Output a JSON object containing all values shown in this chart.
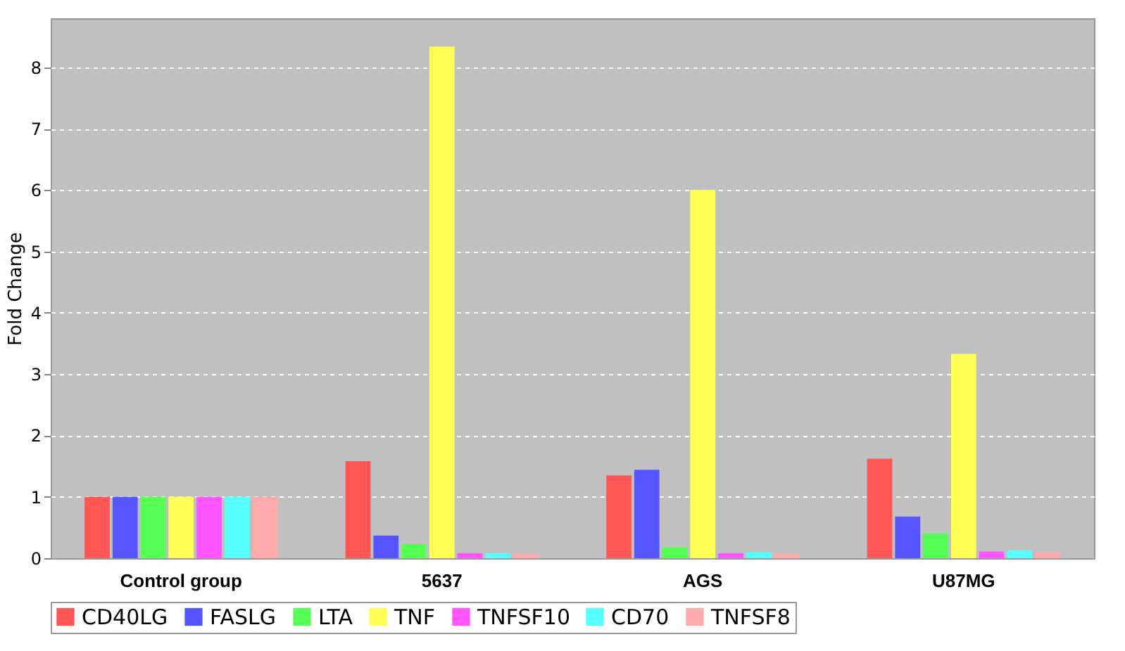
{
  "chart_data": {
    "type": "bar",
    "ylabel": "Fold Change",
    "categories": [
      "Control group",
      "5637",
      "AGS",
      "U87MG"
    ],
    "series": [
      {
        "name": "CD40LG",
        "color": "#ff5555",
        "values": [
          1,
          1.58,
          1.35,
          1.62
        ]
      },
      {
        "name": "FASLG",
        "color": "#5555ff",
        "values": [
          1,
          0.37,
          1.44,
          0.68
        ]
      },
      {
        "name": "LTA",
        "color": "#55ff55",
        "values": [
          1,
          0.23,
          0.18,
          0.4
        ]
      },
      {
        "name": "TNF",
        "color": "#ffff55",
        "values": [
          1,
          8.34,
          6.0,
          3.33
        ]
      },
      {
        "name": "TNFSF10",
        "color": "#ff55ff",
        "values": [
          1,
          0.08,
          0.08,
          0.11
        ]
      },
      {
        "name": "CD70",
        "color": "#55ffff",
        "values": [
          1,
          0.08,
          0.1,
          0.13
        ]
      },
      {
        "name": "TNFSF8",
        "color": "#ffaaaa",
        "values": [
          1,
          0.07,
          0.07,
          0.1
        ]
      }
    ],
    "ylim": [
      0,
      8.8
    ],
    "yticks": [
      0,
      1,
      2,
      3,
      4,
      5,
      6,
      7,
      8
    ],
    "grid": "y",
    "legend": "bottom"
  }
}
